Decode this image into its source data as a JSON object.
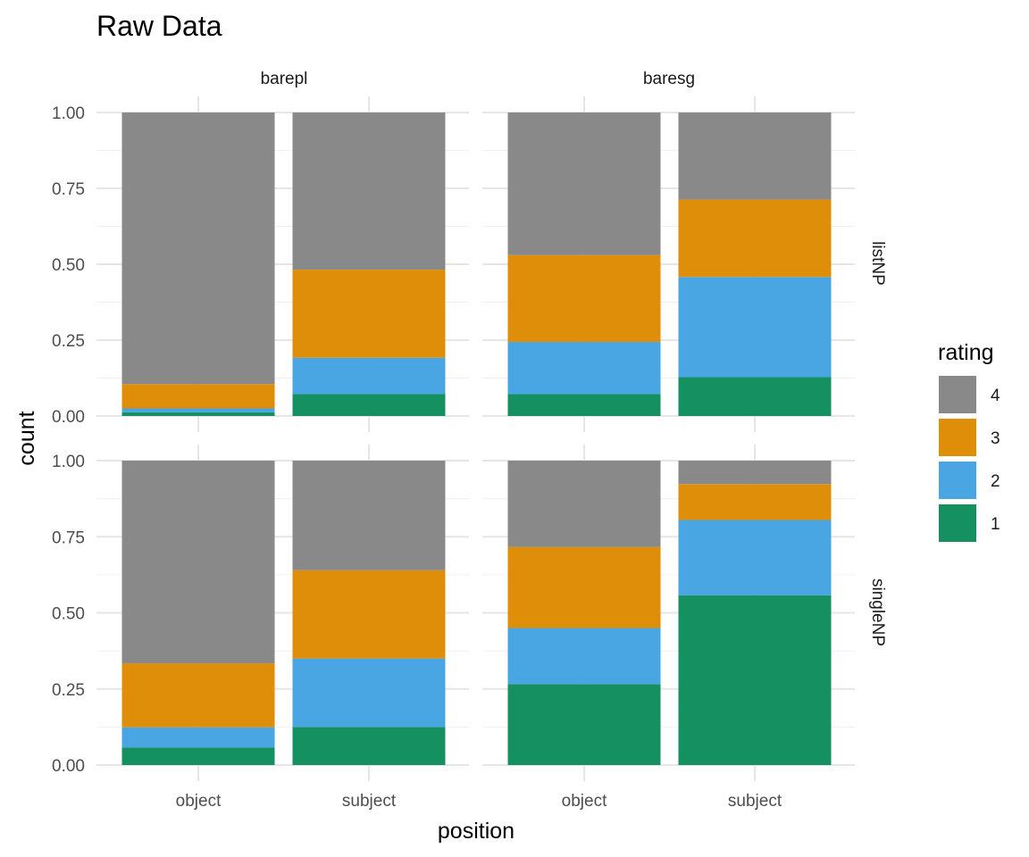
{
  "chart_data": {
    "type": "bar",
    "stacked": true,
    "title": "Raw Data",
    "xlabel": "position",
    "ylabel": "count",
    "ylim": [
      0,
      1
    ],
    "yticks": [
      "0.00",
      "0.25",
      "0.50",
      "0.75",
      "1.00"
    ],
    "categories": [
      "object",
      "subject"
    ],
    "facet_cols": [
      "barepl",
      "baresg"
    ],
    "facet_rows": [
      "listNP",
      "singleNP"
    ],
    "legend": {
      "title": "rating",
      "position": "right",
      "items": [
        {
          "label": "4",
          "color": "#898989"
        },
        {
          "label": "3",
          "color": "#df8e09"
        },
        {
          "label": "2",
          "color": "#49a6e2"
        },
        {
          "label": "1",
          "color": "#159161"
        }
      ]
    },
    "stack_order": [
      "1",
      "2",
      "3",
      "4"
    ],
    "series_colors": {
      "1": "#159161",
      "2": "#49a6e2",
      "3": "#df8e09",
      "4": "#898989"
    },
    "panels": [
      {
        "col": "barepl",
        "row": "listNP",
        "bars": [
          {
            "category": "object",
            "values": {
              "1": 0.012,
              "2": 0.013,
              "3": 0.08,
              "4": 0.895
            }
          },
          {
            "category": "subject",
            "values": {
              "1": 0.072,
              "2": 0.12,
              "3": 0.29,
              "4": 0.518
            }
          }
        ]
      },
      {
        "col": "baresg",
        "row": "listNP",
        "bars": [
          {
            "category": "object",
            "values": {
              "1": 0.072,
              "2": 0.172,
              "3": 0.286,
              "4": 0.47
            }
          },
          {
            "category": "subject",
            "values": {
              "1": 0.128,
              "2": 0.33,
              "3": 0.255,
              "4": 0.287
            }
          }
        ]
      },
      {
        "col": "barepl",
        "row": "singleNP",
        "bars": [
          {
            "category": "object",
            "values": {
              "1": 0.058,
              "2": 0.066,
              "3": 0.21,
              "4": 0.666
            }
          },
          {
            "category": "subject",
            "values": {
              "1": 0.125,
              "2": 0.225,
              "3": 0.29,
              "4": 0.36
            }
          }
        ]
      },
      {
        "col": "baresg",
        "row": "singleNP",
        "bars": [
          {
            "category": "object",
            "values": {
              "1": 0.266,
              "2": 0.184,
              "3": 0.266,
              "4": 0.284
            }
          },
          {
            "category": "subject",
            "values": {
              "1": 0.558,
              "2": 0.247,
              "3": 0.118,
              "4": 0.077
            }
          }
        ]
      }
    ]
  }
}
